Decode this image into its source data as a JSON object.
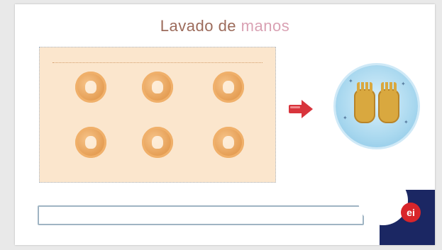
{
  "slide": {
    "title_part1": "Lavado de",
    "title_part2": " manos"
  },
  "panel": {
    "heading": "",
    "steps": [
      {
        "caption": ""
      },
      {
        "caption": ""
      },
      {
        "caption": ""
      },
      {
        "caption": ""
      },
      {
        "caption": ""
      },
      {
        "caption": ""
      }
    ]
  },
  "arrow": {
    "color": "#d8343c"
  },
  "answer_box": {
    "value": ""
  },
  "logo": {
    "mark": "ei"
  }
}
